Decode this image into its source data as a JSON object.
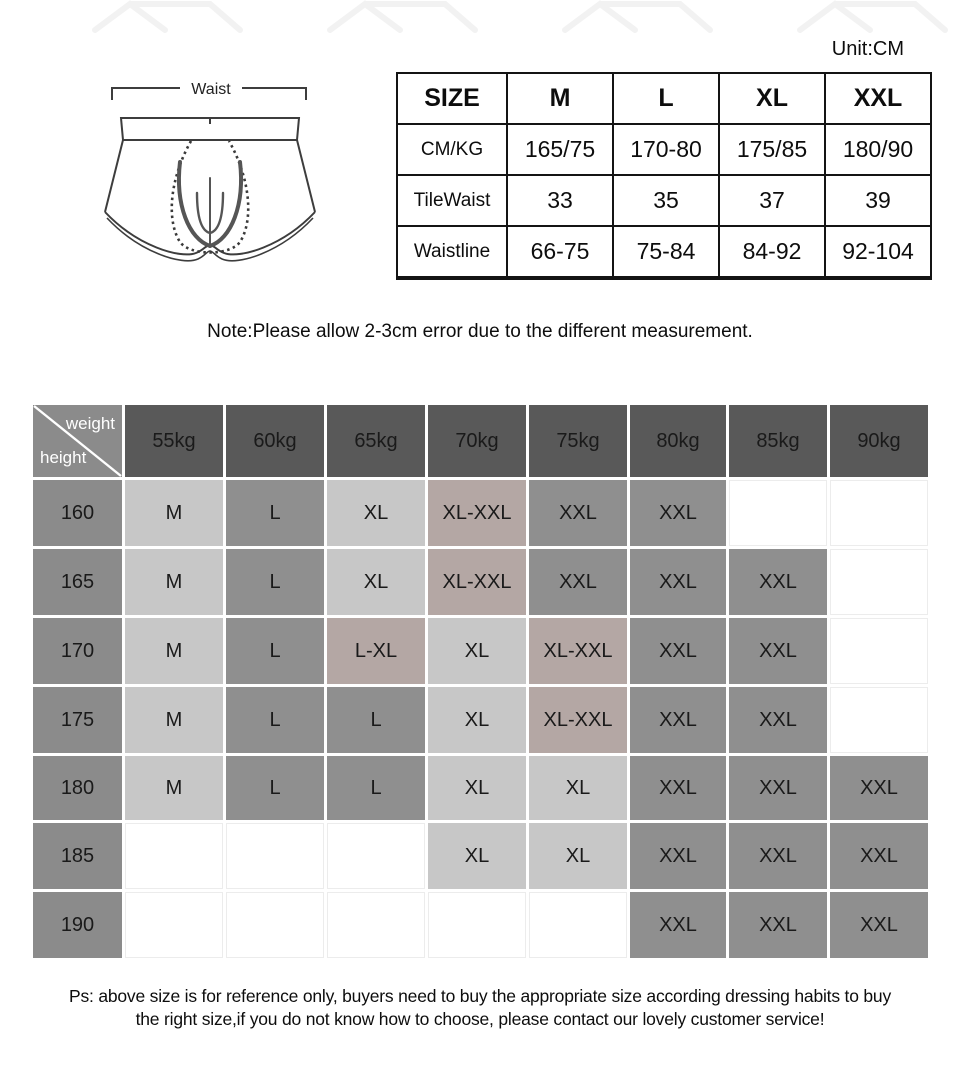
{
  "meta": {
    "unit_label": "Unit:CM"
  },
  "diagram": {
    "waist_label": "Waist"
  },
  "size_table": {
    "header": [
      "SIZE",
      "M",
      "L",
      "XL",
      "XXL"
    ],
    "rows": [
      {
        "label": "CM/KG",
        "values": [
          "165/75",
          "170-80",
          "175/85",
          "180/90"
        ]
      },
      {
        "label": "TileWaist",
        "values": [
          "33",
          "35",
          "37",
          "39"
        ]
      },
      {
        "label": "Waistline",
        "values": [
          "66-75",
          "75-84",
          "84-92",
          "92-104"
        ]
      }
    ]
  },
  "note": "Note:Please allow 2-3cm error due to the different measurement.",
  "matrix": {
    "corner": {
      "weight": "weight",
      "height": "height"
    },
    "weights": [
      "55kg",
      "60kg",
      "65kg",
      "70kg",
      "75kg",
      "80kg",
      "85kg",
      "90kg"
    ],
    "rows": [
      {
        "height": "160",
        "cells": [
          {
            "label": "M",
            "style": "light"
          },
          {
            "label": "L",
            "style": "mid"
          },
          {
            "label": "XL",
            "style": "light"
          },
          {
            "label": "XL-XXL",
            "style": "pink"
          },
          {
            "label": "XXL",
            "style": "mid"
          },
          {
            "label": "XXL",
            "style": "mid"
          },
          {
            "label": "",
            "style": "blank"
          },
          {
            "label": "",
            "style": "blank"
          }
        ]
      },
      {
        "height": "165",
        "cells": [
          {
            "label": "M",
            "style": "light"
          },
          {
            "label": "L",
            "style": "mid"
          },
          {
            "label": "XL",
            "style": "light"
          },
          {
            "label": "XL-XXL",
            "style": "pink"
          },
          {
            "label": "XXL",
            "style": "mid"
          },
          {
            "label": "XXL",
            "style": "mid"
          },
          {
            "label": "XXL",
            "style": "mid"
          },
          {
            "label": "",
            "style": "blank"
          }
        ]
      },
      {
        "height": "170",
        "cells": [
          {
            "label": "M",
            "style": "light"
          },
          {
            "label": "L",
            "style": "mid"
          },
          {
            "label": "L-XL",
            "style": "pink"
          },
          {
            "label": "XL",
            "style": "light"
          },
          {
            "label": "XL-XXL",
            "style": "pink"
          },
          {
            "label": "XXL",
            "style": "mid"
          },
          {
            "label": "XXL",
            "style": "mid"
          },
          {
            "label": "",
            "style": "blank"
          }
        ]
      },
      {
        "height": "175",
        "cells": [
          {
            "label": "M",
            "style": "light"
          },
          {
            "label": "L",
            "style": "mid"
          },
          {
            "label": "L",
            "style": "mid"
          },
          {
            "label": "XL",
            "style": "light"
          },
          {
            "label": "XL-XXL",
            "style": "pink"
          },
          {
            "label": "XXL",
            "style": "mid"
          },
          {
            "label": "XXL",
            "style": "mid"
          },
          {
            "label": "",
            "style": "blank"
          }
        ]
      },
      {
        "height": "180",
        "cells": [
          {
            "label": "M",
            "style": "light"
          },
          {
            "label": "L",
            "style": "mid"
          },
          {
            "label": "L",
            "style": "mid"
          },
          {
            "label": "XL",
            "style": "light"
          },
          {
            "label": "XL",
            "style": "light"
          },
          {
            "label": "XXL",
            "style": "mid"
          },
          {
            "label": "XXL",
            "style": "mid"
          },
          {
            "label": "XXL",
            "style": "mid"
          }
        ]
      },
      {
        "height": "185",
        "cells": [
          {
            "label": "",
            "style": "blank"
          },
          {
            "label": "",
            "style": "blank"
          },
          {
            "label": "",
            "style": "blank"
          },
          {
            "label": "XL",
            "style": "light"
          },
          {
            "label": "XL",
            "style": "light"
          },
          {
            "label": "XXL",
            "style": "mid"
          },
          {
            "label": "XXL",
            "style": "mid"
          },
          {
            "label": "XXL",
            "style": "mid"
          }
        ]
      },
      {
        "height": "190",
        "cells": [
          {
            "label": "",
            "style": "blank"
          },
          {
            "label": "",
            "style": "blank"
          },
          {
            "label": "",
            "style": "blank"
          },
          {
            "label": "",
            "style": "blank"
          },
          {
            "label": "",
            "style": "blank"
          },
          {
            "label": "XXL",
            "style": "mid"
          },
          {
            "label": "XXL",
            "style": "mid"
          },
          {
            "label": "XXL",
            "style": "mid"
          }
        ]
      }
    ]
  },
  "footer": {
    "line1": "Ps: above size is for reference only, buyers need to buy the appropriate size according dressing habits to buy",
    "line2": "the right size,if you do not know how to choose, please contact our lovely customer service!"
  },
  "colors": {
    "header_dark": "#595959",
    "height_col": "#8b8b8b",
    "cell_mid": "#8f8f8f",
    "cell_light": "#c7c7c7",
    "cell_pink": "#b4a7a4",
    "table_border": "#141414"
  }
}
